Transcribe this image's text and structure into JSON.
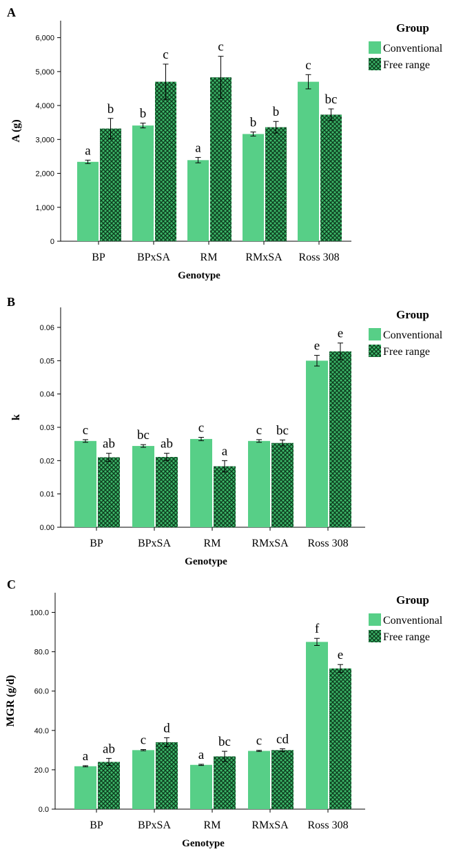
{
  "colors": {
    "conventional": "#57cf87",
    "free_range_base": "#3db86a",
    "free_range_hatch": "#0d3d1e",
    "axis": "#000000"
  },
  "chart_data": [
    {
      "panel_label": "A",
      "type": "bar",
      "ylabel": "A (g)",
      "xlabel": "Genotype",
      "ylim": [
        0,
        6500
      ],
      "yticks": [
        0,
        1000,
        2000,
        3000,
        4000,
        5000,
        6000
      ],
      "ytick_labels": [
        "0",
        "1,000",
        "2,000",
        "3,000",
        "4,000",
        "5,000",
        "6,000"
      ],
      "categories": [
        "BP",
        "BPxSA",
        "RM",
        "RMxSA",
        "Ross 308"
      ],
      "legend_title": "Group",
      "legend_position": "top-right",
      "series": [
        {
          "name": "Conventional",
          "values": [
            2340,
            3410,
            2390,
            3160,
            4700
          ],
          "errors": [
            50,
            70,
            80,
            60,
            210
          ],
          "letters": [
            "a",
            "b",
            "a",
            "b",
            "c"
          ]
        },
        {
          "name": "Free range",
          "values": [
            3320,
            4700,
            4830,
            3360,
            3730
          ],
          "errors": [
            300,
            520,
            620,
            170,
            170
          ],
          "letters": [
            "b",
            "c",
            "c",
            "b",
            "bc"
          ]
        }
      ]
    },
    {
      "panel_label": "B",
      "type": "bar",
      "ylabel": "k",
      "xlabel": "Genotype",
      "ylim": [
        0,
        0.066
      ],
      "yticks": [
        0,
        0.01,
        0.02,
        0.03,
        0.04,
        0.05,
        0.06
      ],
      "ytick_labels": [
        "0.00",
        "0.01",
        "0.02",
        "0.03",
        "0.04",
        "0.05",
        "0.06"
      ],
      "categories": [
        "BP",
        "BPxSA",
        "RM",
        "RMxSA",
        "Ross 308"
      ],
      "legend_title": "Group",
      "legend_position": "top-right",
      "series": [
        {
          "name": "Conventional",
          "values": [
            0.0259,
            0.0244,
            0.0265,
            0.0259,
            0.05
          ],
          "errors": [
            0.0004,
            0.0004,
            0.0005,
            0.0004,
            0.0016
          ],
          "letters": [
            "c",
            "bc",
            "c",
            "c",
            "e"
          ]
        },
        {
          "name": "Free range",
          "values": [
            0.021,
            0.0211,
            0.0183,
            0.0253,
            0.0528
          ],
          "errors": [
            0.0012,
            0.0011,
            0.0017,
            0.0009,
            0.0025
          ],
          "letters": [
            "ab",
            "ab",
            "a",
            "bc",
            "e"
          ]
        }
      ]
    },
    {
      "panel_label": "C",
      "type": "bar",
      "ylabel": "MGR (g/d)",
      "xlabel": "Genotype",
      "ylim": [
        0,
        110
      ],
      "yticks": [
        0,
        20,
        40,
        60,
        80,
        100
      ],
      "ytick_labels": [
        "0.0",
        "20.0",
        "40.0",
        "60.0",
        "80.0",
        "100.0"
      ],
      "categories": [
        "BP",
        "BPxSA",
        "RM",
        "RMxSA",
        "Ross 308"
      ],
      "legend_title": "Group",
      "legend_position": "top-right",
      "series": [
        {
          "name": "Conventional",
          "values": [
            21.8,
            30,
            22.5,
            29.6,
            85
          ],
          "errors": [
            0.3,
            0.3,
            0.3,
            0.3,
            1.8
          ],
          "letters": [
            "a",
            "c",
            "a",
            "c",
            "f"
          ]
        },
        {
          "name": "Free range",
          "values": [
            24,
            34,
            26.8,
            30,
            71.5
          ],
          "errors": [
            1.8,
            2.3,
            2.6,
            0.7,
            2.0
          ],
          "letters": [
            "ab",
            "d",
            "bc",
            "cd",
            "e"
          ]
        }
      ]
    }
  ]
}
